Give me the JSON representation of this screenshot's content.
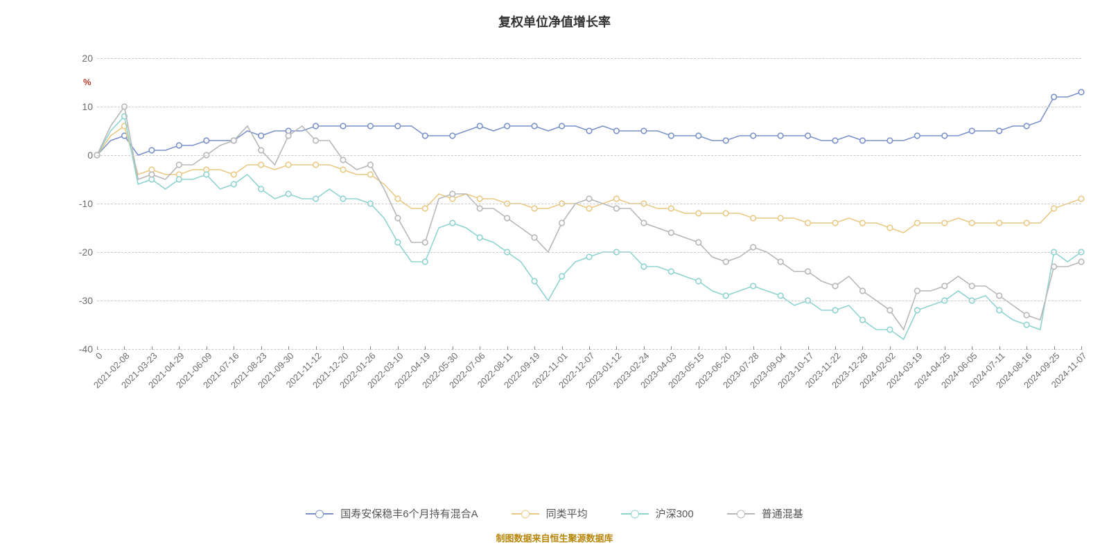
{
  "chart": {
    "type": "line",
    "title": "复权单位净值增长率",
    "footer": "制图数据来自恒生聚源数据库",
    "y_unit_label": "%",
    "background_color": "#ffffff",
    "grid_color": "#c9c9c9",
    "axis_text_color": "#6b6b6b",
    "title_color": "#333333",
    "title_fontsize": 18,
    "tick_fontsize": 14,
    "line_width": 1.6,
    "marker_radius": 3.8,
    "marker_fill": "#ffffff",
    "ylim": [
      -40,
      20
    ],
    "yticks": [
      20,
      10,
      0,
      -10,
      -20,
      -30,
      -40
    ],
    "xticks": [
      "0",
      "2021-02-08",
      "2021-03-23",
      "2021-04-29",
      "2021-06-09",
      "2021-07-16",
      "2021-08-23",
      "2021-09-30",
      "2021-11-12",
      "2021-12-20",
      "2022-01-26",
      "2022-03-10",
      "2022-04-19",
      "2022-05-30",
      "2022-07-06",
      "2022-08-11",
      "2022-09-19",
      "2022-11-01",
      "2022-12-07",
      "2023-01-12",
      "2023-02-24",
      "2023-04-03",
      "2023-05-15",
      "2023-06-20",
      "2023-07-28",
      "2023-09-04",
      "2023-10-17",
      "2023-11-22",
      "2023-12-28",
      "2024-02-02",
      "2024-03-19",
      "2024-04-25",
      "2024-06-05",
      "2024-07-11",
      "2024-08-16",
      "2024-09-25",
      "2024-11-07"
    ],
    "series": [
      {
        "name": "国寿安保稳丰6个月持有混合A",
        "color": "#7a92c9",
        "values": [
          0,
          3,
          4,
          0,
          1,
          1,
          2,
          2,
          3,
          3,
          3,
          5,
          4,
          5,
          5,
          5,
          6,
          6,
          6,
          6,
          6,
          6,
          6,
          6,
          4,
          4,
          4,
          5,
          6,
          5,
          6,
          6,
          6,
          5,
          6,
          6,
          5,
          6,
          5,
          5,
          5,
          5,
          4,
          4,
          4,
          3,
          3,
          4,
          4,
          4,
          4,
          4,
          4,
          3,
          3,
          4,
          3,
          3,
          3,
          3,
          4,
          4,
          4,
          4,
          5,
          5,
          5,
          6,
          6,
          7,
          12,
          12,
          13
        ]
      },
      {
        "name": "同类平均",
        "color": "#e9c984",
        "values": [
          0,
          4,
          6,
          -4,
          -3,
          -4,
          -4,
          -3,
          -3,
          -3,
          -4,
          -2,
          -2,
          -3,
          -2,
          -2,
          -2,
          -2,
          -3,
          -4,
          -4,
          -6,
          -9,
          -11,
          -11,
          -8,
          -9,
          -8,
          -9,
          -9,
          -10,
          -10,
          -11,
          -11,
          -10,
          -10,
          -11,
          -10,
          -9,
          -10,
          -10,
          -11,
          -11,
          -12,
          -12,
          -12,
          -12,
          -12,
          -13,
          -13,
          -13,
          -13,
          -14,
          -14,
          -14,
          -13,
          -14,
          -14,
          -15,
          -16,
          -14,
          -14,
          -14,
          -13,
          -14,
          -14,
          -14,
          -14,
          -14,
          -14,
          -11,
          -10,
          -9
        ]
      },
      {
        "name": "沪深300",
        "color": "#8fd3d1",
        "values": [
          0,
          5,
          8,
          -6,
          -5,
          -7,
          -5,
          -5,
          -4,
          -7,
          -6,
          -4,
          -7,
          -9,
          -8,
          -9,
          -9,
          -7,
          -9,
          -9,
          -10,
          -13,
          -18,
          -22,
          -22,
          -15,
          -14,
          -15,
          -17,
          -18,
          -20,
          -22,
          -26,
          -30,
          -25,
          -22,
          -21,
          -20,
          -20,
          -20,
          -23,
          -23,
          -24,
          -25,
          -26,
          -28,
          -29,
          -28,
          -27,
          -28,
          -29,
          -31,
          -30,
          -32,
          -32,
          -31,
          -34,
          -36,
          -36,
          -38,
          -32,
          -31,
          -30,
          -28,
          -30,
          -29,
          -32,
          -34,
          -35,
          -36,
          -20,
          -22,
          -20
        ]
      },
      {
        "name": "普通混基",
        "color": "#b7b7b7",
        "values": [
          0,
          6,
          10,
          -5,
          -4,
          -5,
          -2,
          -2,
          0,
          2,
          3,
          6,
          1,
          -2,
          4,
          6,
          3,
          3,
          -1,
          -3,
          -2,
          -7,
          -13,
          -18,
          -18,
          -9,
          -8,
          -8,
          -11,
          -11,
          -13,
          -15,
          -17,
          -20,
          -14,
          -10,
          -9,
          -10,
          -11,
          -11,
          -14,
          -15,
          -16,
          -17,
          -18,
          -21,
          -22,
          -21,
          -19,
          -20,
          -22,
          -24,
          -24,
          -26,
          -27,
          -25,
          -28,
          -30,
          -32,
          -36,
          -28,
          -28,
          -27,
          -25,
          -27,
          -27,
          -29,
          -31,
          -33,
          -34,
          -23,
          -23,
          -22
        ]
      }
    ],
    "marker_indices": [
      0,
      2,
      4,
      6,
      8,
      10,
      12,
      14,
      16,
      18,
      20,
      22,
      24,
      26,
      28,
      30,
      32,
      34,
      36,
      38,
      40,
      42,
      44,
      46,
      48,
      50,
      52,
      54,
      56,
      58,
      60,
      62,
      64,
      66,
      68,
      70,
      72
    ]
  }
}
